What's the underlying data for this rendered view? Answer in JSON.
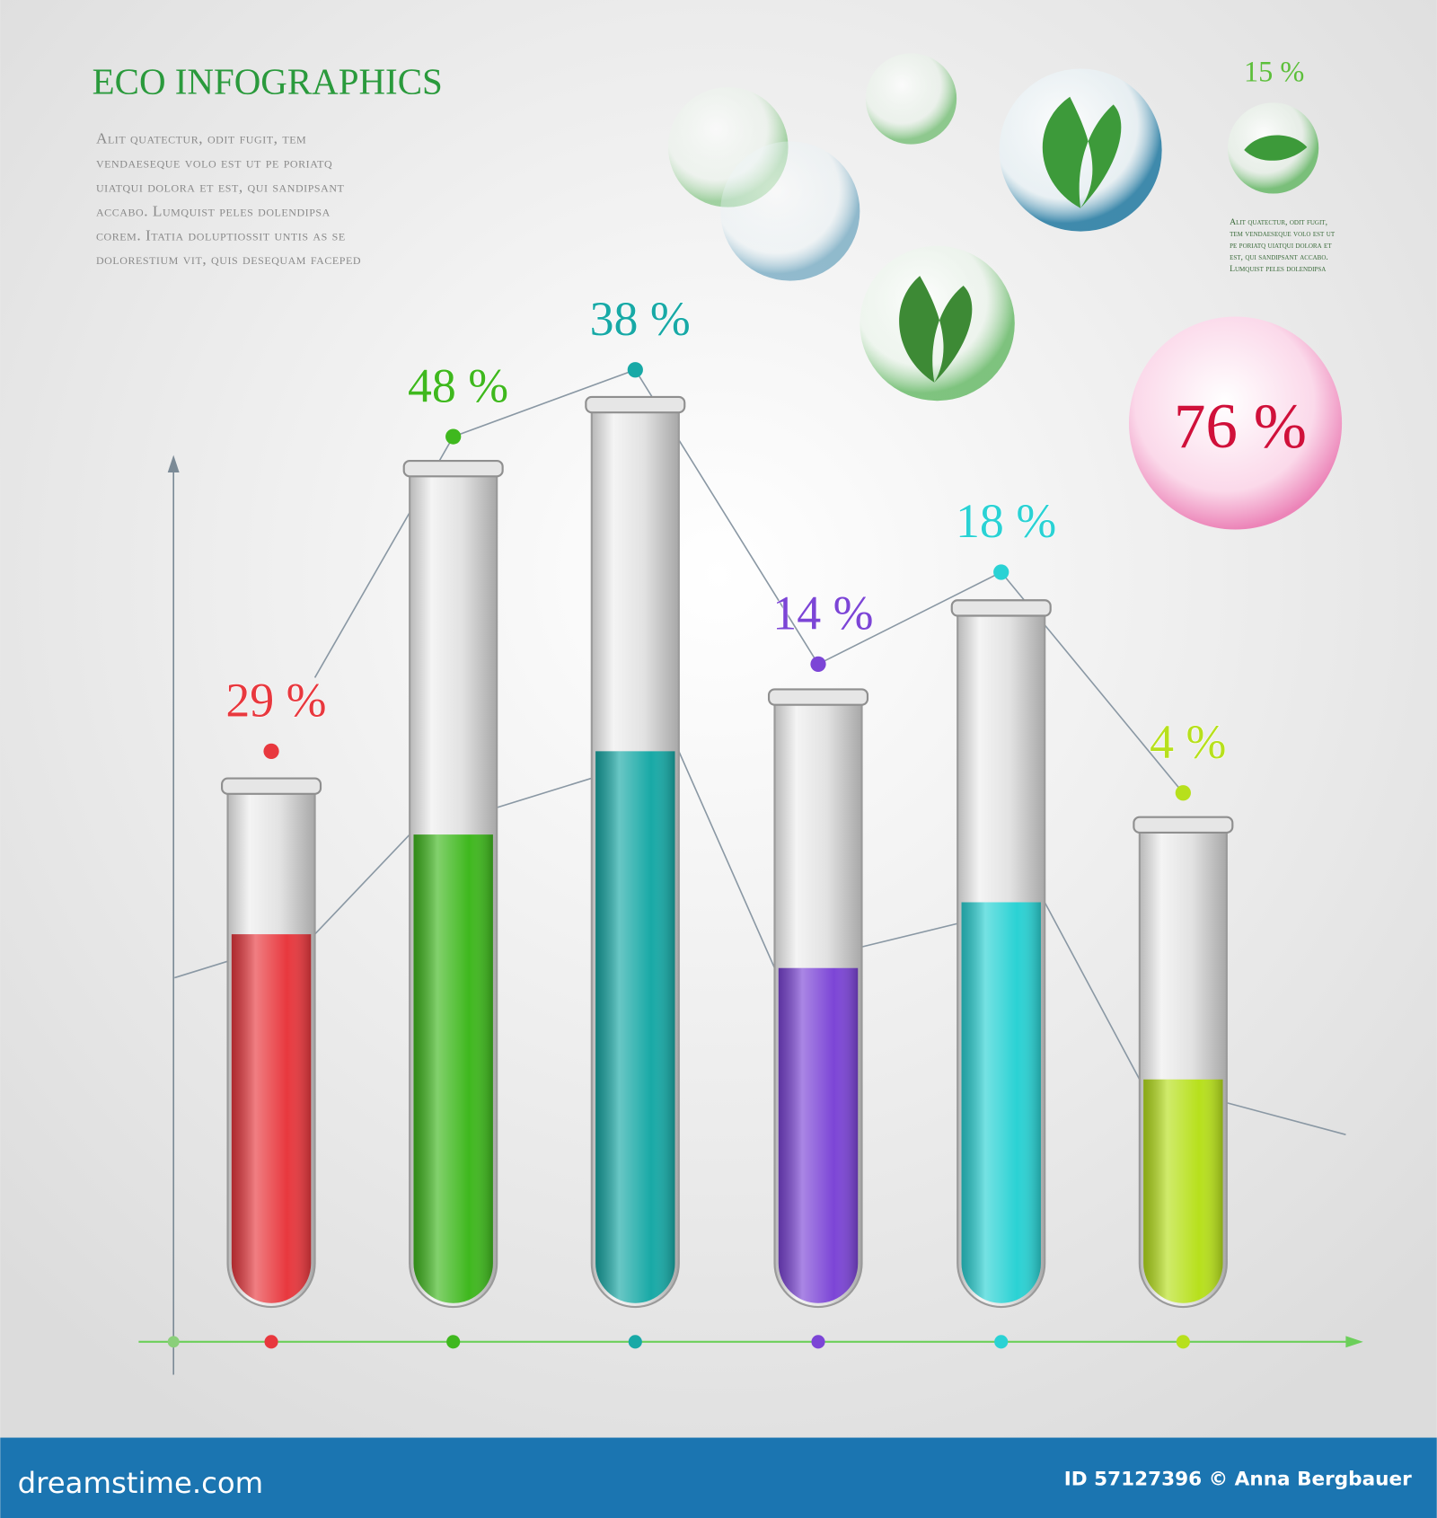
{
  "header": {
    "title": "ECO INFOGRAPHICS",
    "body": [
      "Alit quatectur, odit fugit, tem",
      "vendaeseque volo est ut pe poriatq",
      "uiatqui dolora et est, qui sandipsant",
      "accabo. Lumquist peles dolendipsa",
      "corem. Itatia doluptiossit untis as se",
      "dolorestium vit, quis desequam faceped"
    ]
  },
  "side_note": {
    "label": "15 %",
    "body": [
      "Alit quatectur, odit fugit,",
      "tem vendaeseque volo est ut",
      "pe poriatq uiatqui dolora et",
      "est, qui sandipsant accabo.",
      "Lumquist peles dolendipsa"
    ]
  },
  "bubble": {
    "label": "76 %",
    "color": "#d0103a"
  },
  "tubes": [
    {
      "label": "29 %",
      "color": "#e8383e"
    },
    {
      "label": "48 %",
      "color": "#3fb81e"
    },
    {
      "label": "38 %",
      "color": "#18a9a6"
    },
    {
      "label": "14 %",
      "color": "#7c45d6"
    },
    {
      "label": "18 %",
      "color": "#2ad2d4"
    },
    {
      "label": "4 %",
      "color": "#b7e01c"
    }
  ],
  "footer": {
    "brand": "dreamstime.com",
    "credit": "ID 57127396 © Anna Bergbauer"
  }
}
